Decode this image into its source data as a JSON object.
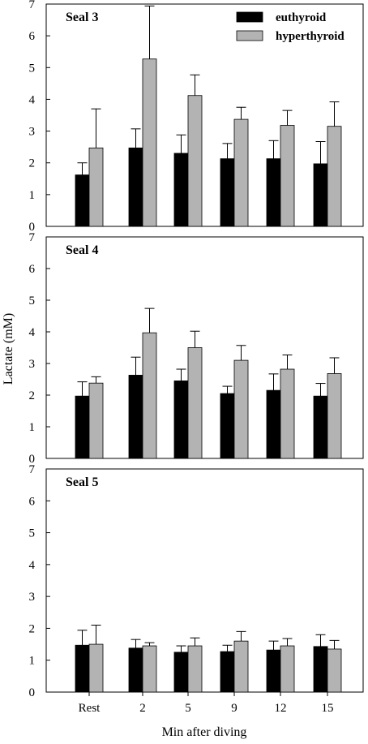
{
  "chart_data": {
    "type": "bar",
    "categories": [
      "Rest",
      "2",
      "5",
      "9",
      "12",
      "15"
    ],
    "xlabel": "Min after diving",
    "ylabel": "Lactate (mM)",
    "ylim": [
      0,
      7
    ],
    "yticks": [
      "0",
      "1",
      "2",
      "3",
      "4",
      "5",
      "6",
      "7"
    ],
    "legend": {
      "placement": "top-right of first panel",
      "entries": [
        {
          "label": "euthyroid",
          "color": "#000000"
        },
        {
          "label": "hyperthyroid",
          "color": "#b3b3b3"
        }
      ]
    },
    "panels": [
      {
        "label": "Seal 3",
        "series": [
          {
            "name": "euthyroid",
            "values": [
              1.62,
              2.47,
              2.3,
              2.13,
              2.13,
              1.97
            ],
            "errors": [
              0.38,
              0.6,
              0.58,
              0.48,
              0.57,
              0.7
            ]
          },
          {
            "name": "hyperthyroid",
            "values": [
              2.47,
              5.27,
              4.12,
              3.37,
              3.18,
              3.15
            ],
            "errors": [
              1.23,
              1.67,
              0.65,
              0.38,
              0.47,
              0.77
            ]
          }
        ]
      },
      {
        "label": "Seal 4",
        "series": [
          {
            "name": "euthyroid",
            "values": [
              1.97,
              2.63,
              2.45,
              2.05,
              2.15,
              1.97
            ],
            "errors": [
              0.45,
              0.57,
              0.37,
              0.23,
              0.52,
              0.4
            ]
          },
          {
            "name": "hyperthyroid",
            "values": [
              2.38,
              3.97,
              3.5,
              3.1,
              2.82,
              2.68
            ],
            "errors": [
              0.2,
              0.77,
              0.52,
              0.47,
              0.45,
              0.5
            ]
          }
        ]
      },
      {
        "label": "Seal 5",
        "series": [
          {
            "name": "euthyroid",
            "values": [
              1.47,
              1.38,
              1.25,
              1.27,
              1.32,
              1.43
            ],
            "errors": [
              0.47,
              0.27,
              0.2,
              0.2,
              0.28,
              0.37
            ]
          },
          {
            "name": "hyperthyroid",
            "values": [
              1.5,
              1.45,
              1.45,
              1.6,
              1.45,
              1.35
            ],
            "errors": [
              0.6,
              0.1,
              0.25,
              0.3,
              0.23,
              0.27
            ]
          }
        ]
      }
    ]
  }
}
